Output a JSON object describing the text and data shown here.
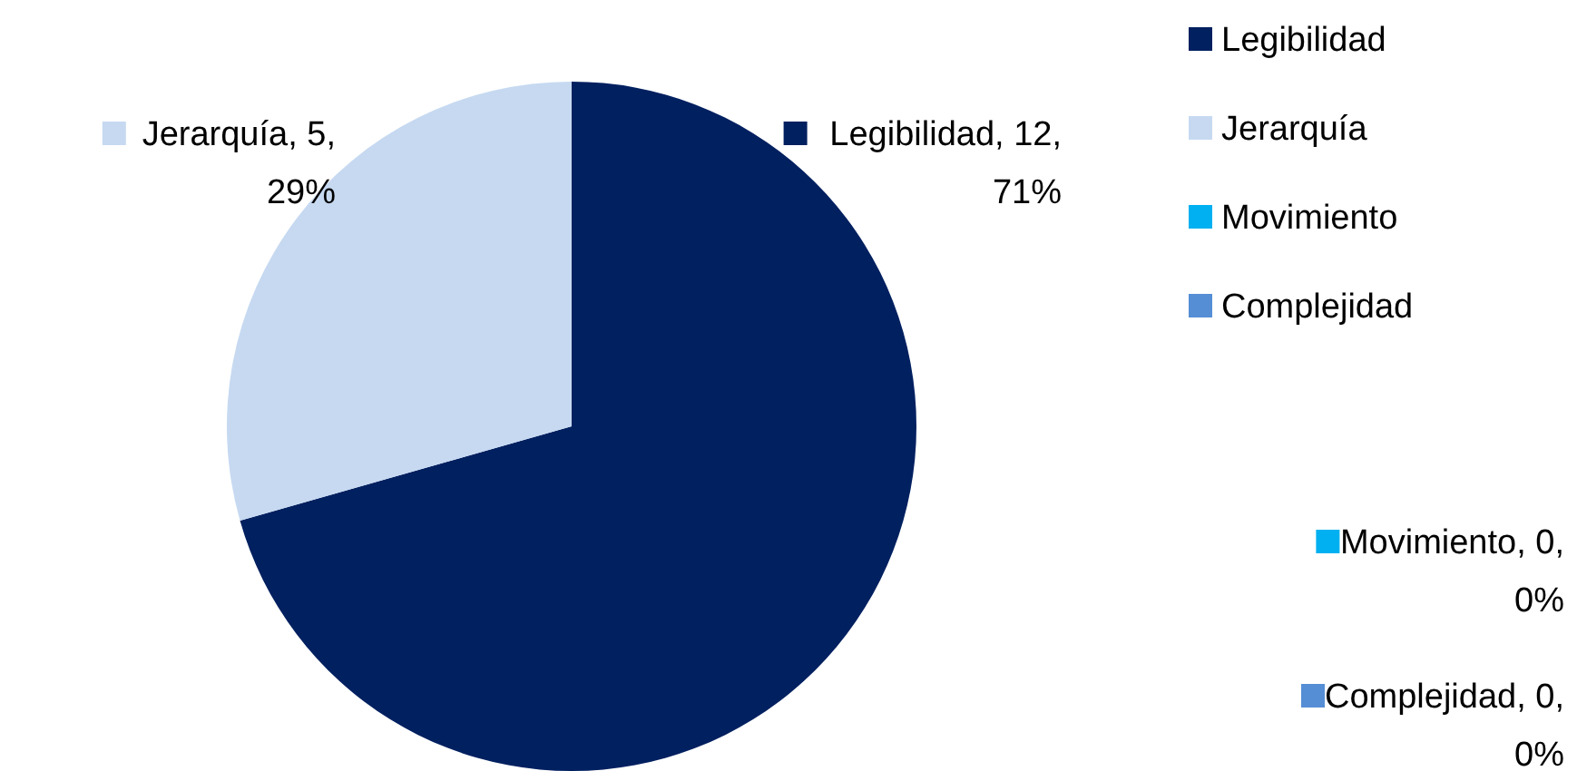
{
  "chart_data": {
    "type": "pie",
    "categories": [
      "Legibilidad",
      "Jerarquía",
      "Movimiento",
      "Complejidad"
    ],
    "values": [
      12,
      5,
      0,
      0
    ],
    "colors": [
      "#002060",
      "#c6d9f1",
      "#00b0f0",
      "#558ed5"
    ],
    "value_labels": [
      "Legibilidad, 12, 71%",
      "Jerarquía, 5, 29%",
      "Movimiento, 0, 0%",
      "Complejidad, 0, 0%"
    ],
    "legend": "top right"
  }
}
